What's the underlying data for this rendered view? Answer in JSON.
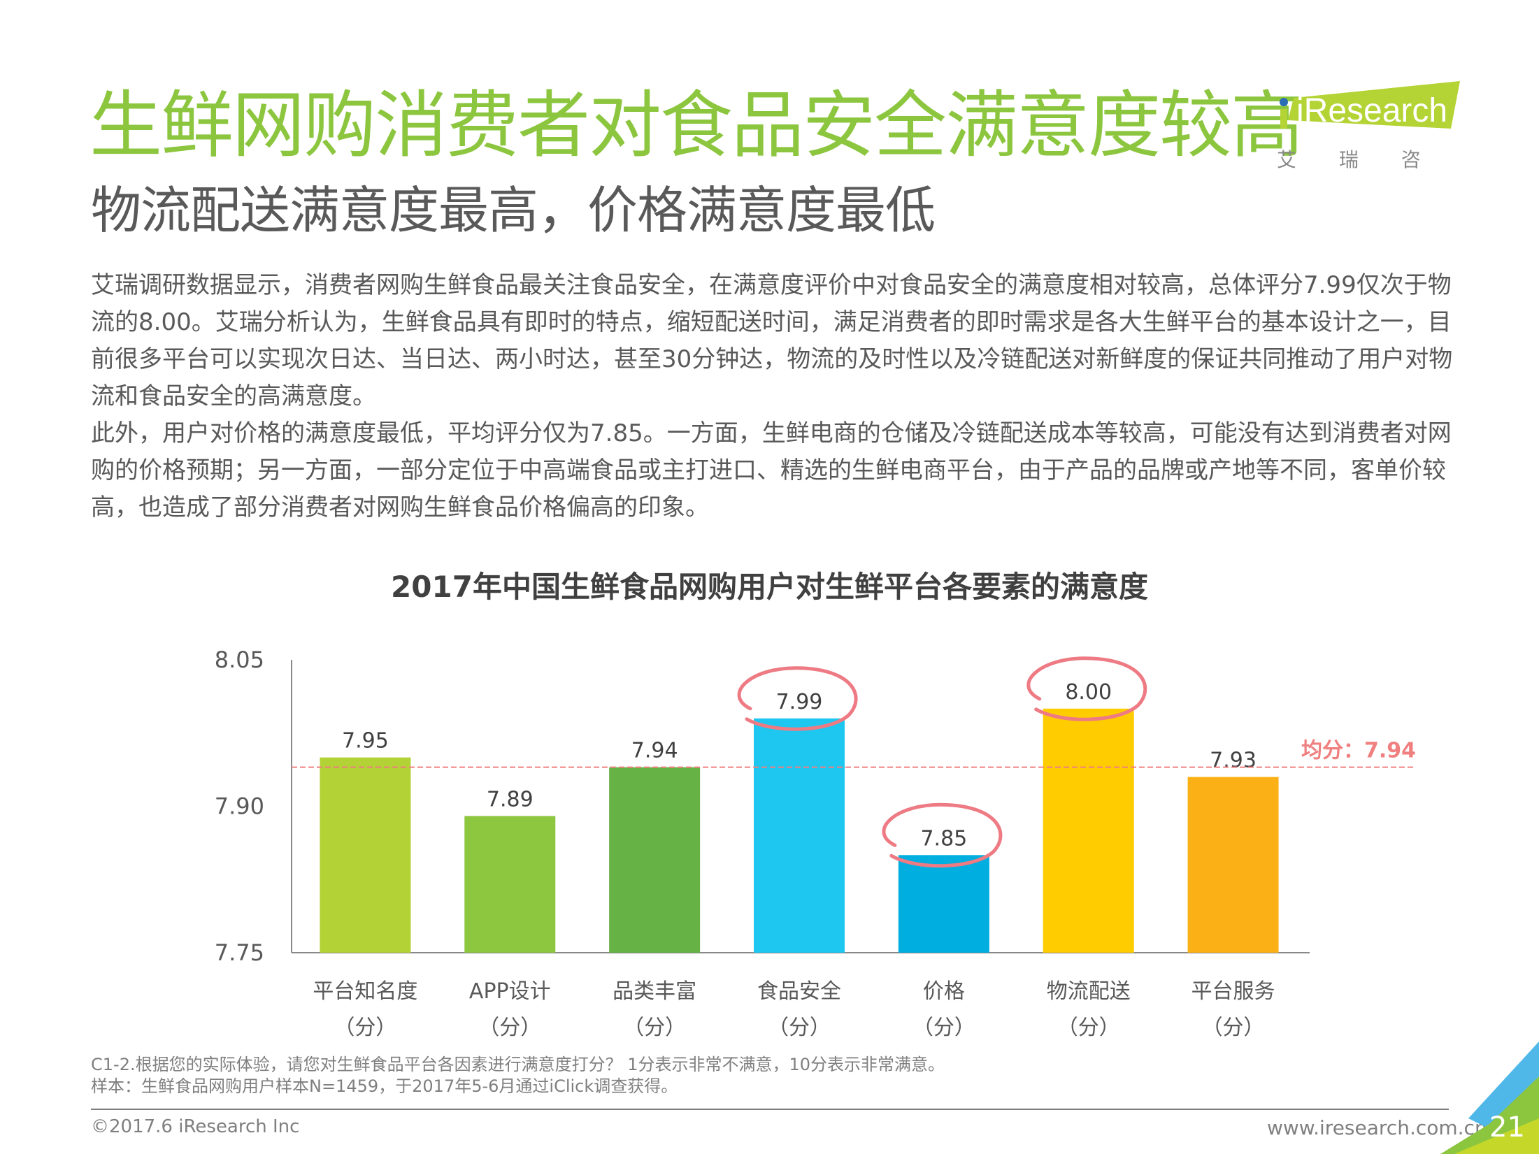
{
  "header": {
    "title": "生鲜网购消费者对食品安全满意度较高",
    "subtitle": "物流配送满意度最高，价格满意度最低",
    "logo_text": "iResearch",
    "logo_cn": "艾 瑞 咨 询"
  },
  "body": {
    "paragraph1": "艾瑞调研数据显示，消费者网购生鲜食品最关注食品安全，在满意度评价中对食品安全的满意度相对较高，总体评分7.99仅次于物流的8.00。艾瑞分析认为，生鲜食品具有即时的特点，缩短配送时间，满足消费者的即时需求是各大生鲜平台的基本设计之一，目前很多平台可以实现次日达、当日达、两小时达，甚至30分钟达，物流的及时性以及冷链配送对新鲜度的保证共同推动了用户对物流和食品安全的高满意度。",
    "paragraph2": "此外，用户对价格的满意度最低，平均评分仅为7.85。一方面，生鲜电商的仓储及冷链配送成本等较高，可能没有达到消费者对网购的价格预期；另一方面，一部分定位于中高端食品或主打进口、精选的生鲜电商平台，由于产品的品牌或产地等不同，客单价较高，也造成了部分消费者对网购生鲜食品价格偏高的印象。"
  },
  "chart_data": {
    "type": "bar",
    "title": "2017年中国生鲜食品网购用户对生鲜平台各要素的满意度",
    "categories": [
      "平台知名度",
      "APP设计",
      "品类丰富",
      "食品安全",
      "价格",
      "物流配送",
      "平台服务"
    ],
    "category_unit": "（分）",
    "values": [
      7.95,
      7.89,
      7.94,
      7.99,
      7.85,
      8.0,
      7.93
    ],
    "value_labels": [
      "7.95",
      "7.89",
      "7.94",
      "7.99",
      "7.85",
      "8.00",
      "7.93"
    ],
    "colors": [
      "#b2d235",
      "#8dc63f",
      "#66b245",
      "#1ec7f0",
      "#00aee0",
      "#ffcc00",
      "#fbb116"
    ],
    "highlighted": [
      "食品安全",
      "价格",
      "物流配送"
    ],
    "ylim": [
      7.75,
      8.05
    ],
    "yticks": [
      7.75,
      7.9,
      8.05
    ],
    "ytick_labels": [
      "7.75",
      "7.90",
      "8.05"
    ],
    "average": 7.94,
    "average_label": "均分：7.94",
    "average_color": "#f08080",
    "xlabel": "",
    "ylabel": "",
    "grid": false
  },
  "footer": {
    "note_line1": "C1-2.根据您的实际体验，请您对生鲜食品平台各因素进行满意度打分？ 1分表示非常不满意，10分表示非常满意。",
    "note_line2": "样本：生鲜食品网购用户样本N=1459，于2017年5-6月通过iClick调查获得。",
    "copyright": "©2017.6 iResearch Inc",
    "website": "www.iresearch.com.cn",
    "page_number": "21"
  }
}
